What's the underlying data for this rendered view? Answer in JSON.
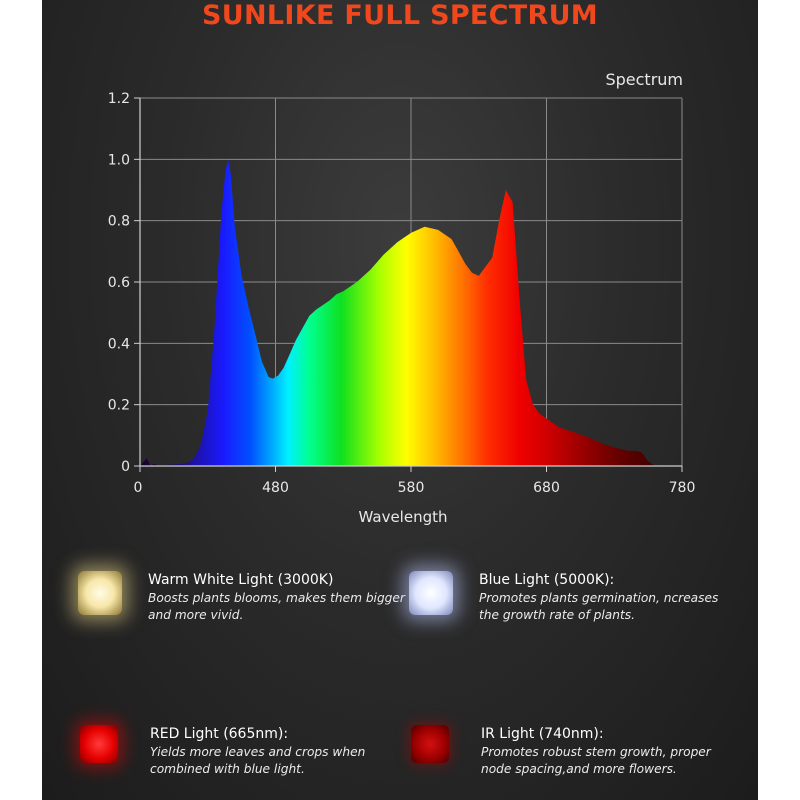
{
  "title": "SUNLIKE FULL SPECTRUM",
  "chart_data": {
    "type": "area",
    "title": "",
    "legend": "Spectrum",
    "xlabel": "Wavelength",
    "ylabel": "",
    "x_ticks": [
      "0",
      "480",
      "580",
      "680",
      "780"
    ],
    "y_ticks": [
      "0",
      "0.2",
      "0.4",
      "0.6",
      "0.8",
      "1.0",
      "1.2"
    ],
    "xlim": [
      380,
      780
    ],
    "ylim": [
      0,
      1.2
    ],
    "grid": true,
    "series": [
      {
        "name": "Spectrum",
        "x": [
          380,
          385,
          388,
          390,
          393,
          396,
          400,
          405,
          410,
          415,
          420,
          425,
          430,
          435,
          440,
          443,
          445,
          447,
          450,
          455,
          460,
          465,
          470,
          475,
          478,
          482,
          486,
          490,
          495,
          500,
          505,
          510,
          515,
          520,
          525,
          530,
          540,
          550,
          560,
          570,
          580,
          590,
          600,
          610,
          615,
          620,
          625,
          630,
          640,
          645,
          650,
          655,
          660,
          665,
          670,
          675,
          680,
          685,
          690,
          700,
          710,
          720,
          730,
          740,
          745,
          750,
          755,
          760
        ],
        "values": [
          0,
          0.025,
          0,
          0.008,
          0.003,
          0.003,
          0.004,
          0.005,
          0.007,
          0.01,
          0.025,
          0.07,
          0.18,
          0.45,
          0.82,
          0.96,
          1.0,
          0.95,
          0.78,
          0.62,
          0.52,
          0.43,
          0.34,
          0.29,
          0.285,
          0.295,
          0.32,
          0.36,
          0.41,
          0.45,
          0.49,
          0.51,
          0.525,
          0.54,
          0.56,
          0.57,
          0.6,
          0.64,
          0.69,
          0.73,
          0.76,
          0.78,
          0.77,
          0.74,
          0.7,
          0.66,
          0.63,
          0.62,
          0.68,
          0.8,
          0.9,
          0.86,
          0.55,
          0.28,
          0.2,
          0.17,
          0.155,
          0.14,
          0.125,
          0.11,
          0.095,
          0.075,
          0.06,
          0.05,
          0.05,
          0.045,
          0.015,
          0
        ]
      }
    ]
  },
  "features": [
    {
      "title": "Warm White Light (3000K)",
      "desc": "Boosts plants blooms, makes them bigger and more vivid.",
      "icon": "warm-white-led-icon",
      "color": "#f5e6a8"
    },
    {
      "title": "Blue Light (5000K):",
      "desc": "Promotes plants germination, ncreases the growth rate of plants.",
      "icon": "blue-led-icon",
      "color": "#dfe6ff"
    },
    {
      "title": "RED Light (665nm):",
      "desc": "Yields more leaves and crops when combined with blue light.",
      "icon": "red-led-icon",
      "color": "#e60000"
    },
    {
      "title": "IR Light (740nm):",
      "desc": "Promotes robust stem growth, proper node spacing,and more flowers.",
      "icon": "ir-led-icon",
      "color": "#a00000"
    }
  ]
}
